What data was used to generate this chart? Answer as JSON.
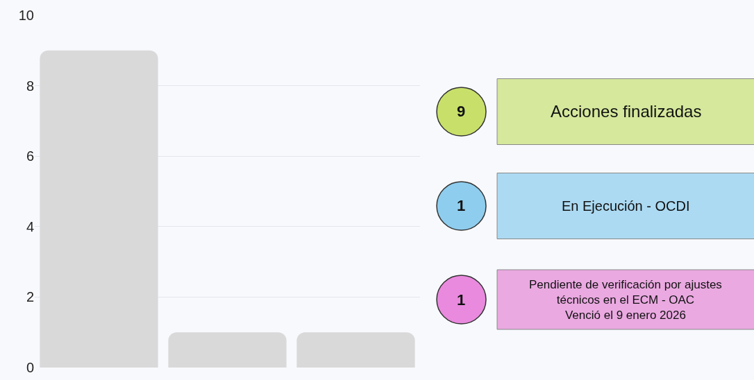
{
  "chart_data": {
    "type": "bar",
    "categories": [
      null,
      null,
      null
    ],
    "values": [
      9,
      1,
      1
    ],
    "color": "#d9d9d9",
    "ylim": [
      0,
      10
    ],
    "yticks": [
      0,
      2,
      4,
      6,
      8,
      10
    ],
    "grid": "y",
    "annotations": [
      "9",
      "Acciones finalizadas",
      "1",
      "En Ejecución - OCDI",
      "1",
      "Pendiente de verificación por ajustes\ntécnicos en el ECM - OAC\nVenció el 9 enero 2026"
    ]
  }
}
